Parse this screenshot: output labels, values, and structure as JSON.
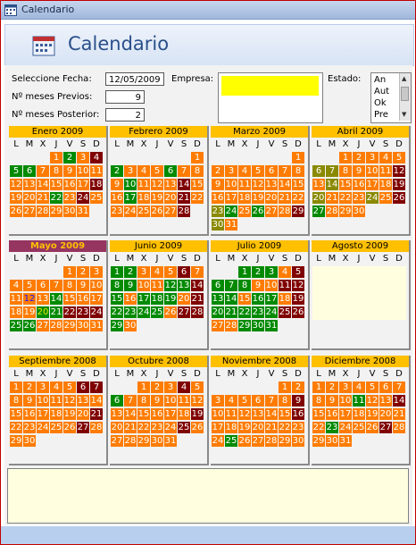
{
  "window": {
    "title": "Calendario"
  },
  "header": {
    "title": "Calendario"
  },
  "form": {
    "fecha_label": "Seleccione Fecha:",
    "fecha_value": "12/05/2009",
    "previos_label": "Nº meses Previos:",
    "previos_value": "9",
    "posterior_label": "Nº meses Posterior:",
    "posterior_value": "2",
    "empresa_label": "Empresa:",
    "estado_label": "Estado:",
    "estado_items": [
      "An",
      "Aut",
      "Ok",
      "Pre"
    ]
  },
  "dow_labels": [
    "L",
    "M",
    "X",
    "J",
    "V",
    "S",
    "D"
  ],
  "colors": {
    "orange": "#ff7c00",
    "green": "#008a00",
    "darkred": "#800000",
    "olive": "#8a8a00",
    "gold": "#ffc000",
    "current": "#963560"
  },
  "months": [
    {
      "title": "Enero 2009",
      "weeks": [
        [
          "",
          "",
          "",
          "1o",
          "2g",
          "3o",
          "4r"
        ],
        [
          "5g",
          "6g",
          "7o",
          "8o",
          "9o",
          "10o",
          "11o"
        ],
        [
          "12o",
          "13o",
          "14o",
          "15o",
          "16o",
          "17o",
          "18r"
        ],
        [
          "19o",
          "20o",
          "21o",
          "22g",
          "23o",
          "24r",
          "25o"
        ],
        [
          "26o",
          "27o",
          "28o",
          "29o",
          "30o",
          "31o",
          ""
        ]
      ]
    },
    {
      "title": "Febrero 2009",
      "weeks": [
        [
          "",
          "",
          "",
          "",
          "",
          "",
          "1o"
        ],
        [
          "2g",
          "3o",
          "4o",
          "5o",
          "6g",
          "7o",
          "8o"
        ],
        [
          "9o",
          "10g",
          "11o",
          "12o",
          "13o",
          "14r",
          "15o"
        ],
        [
          "16o",
          "17g",
          "18o",
          "19o",
          "20o",
          "21r",
          "22o"
        ],
        [
          "23o",
          "24o",
          "25o",
          "26o",
          "27o",
          "28r",
          ""
        ]
      ]
    },
    {
      "title": "Marzo 2009",
      "weeks": [
        [
          "",
          "",
          "",
          "",
          "",
          "",
          "1o"
        ],
        [
          "2o",
          "3o",
          "4o",
          "5o",
          "6o",
          "7o",
          "8o"
        ],
        [
          "9o",
          "10o",
          "11o",
          "12o",
          "13o",
          "14o",
          "15o"
        ],
        [
          "16o",
          "17o",
          "18o",
          "19o",
          "20o",
          "21o",
          "22o"
        ],
        [
          "23y",
          "24g",
          "25o",
          "26g",
          "27o",
          "28o",
          "29r"
        ],
        [
          "30y",
          "31o",
          "",
          "",
          "",
          "",
          ""
        ]
      ]
    },
    {
      "title": "Abril 2009",
      "weeks": [
        [
          "",
          "",
          "1o",
          "2o",
          "3o",
          "4o",
          "5o"
        ],
        [
          "6y",
          "7y",
          "8o",
          "9o",
          "10o",
          "11o",
          "12r"
        ],
        [
          "13o",
          "14y",
          "15o",
          "16o",
          "17o",
          "18o",
          "19r"
        ],
        [
          "20y",
          "21o",
          "22o",
          "23o",
          "24y",
          "25o",
          "26r"
        ],
        [
          "27g",
          "28o",
          "29o",
          "30o",
          "",
          "",
          ""
        ]
      ]
    },
    {
      "title": "Mayo 2009",
      "current": true,
      "weeks": [
        [
          "",
          "",
          "",
          "",
          "1o",
          "2o",
          "3o"
        ],
        [
          "4o",
          "5o",
          "6o",
          "7o",
          "8o",
          "9o",
          "10o"
        ],
        [
          "11o",
          "12s",
          "13o",
          "14g",
          "15o",
          "16o",
          "17o"
        ],
        [
          "18o",
          "19o",
          "20t",
          "21g",
          "22r",
          "23r",
          "24r"
        ],
        [
          "25g",
          "26g",
          "27o",
          "28o",
          "29o",
          "30o",
          "31o"
        ]
      ]
    },
    {
      "title": "Junio 2009",
      "weeks": [
        [
          "1g",
          "2g",
          "3o",
          "4o",
          "5o",
          "6r",
          "7o"
        ],
        [
          "8g",
          "9g",
          "10o",
          "11o",
          "12g",
          "13g",
          "14r"
        ],
        [
          "15g",
          "16o",
          "17g",
          "18g",
          "19g",
          "20o",
          "21r"
        ],
        [
          "22g",
          "23g",
          "24g",
          "25g",
          "26o",
          "27r",
          "28r"
        ],
        [
          "29g",
          "30o",
          "",
          "",
          "",
          "",
          ""
        ]
      ]
    },
    {
      "title": "Julio 2009",
      "weeks": [
        [
          "",
          "",
          "1g",
          "2g",
          "3g",
          "4o",
          "5r"
        ],
        [
          "6g",
          "7g",
          "8g",
          "9o",
          "10o",
          "11r",
          "12r"
        ],
        [
          "13g",
          "14g",
          "15o",
          "16g",
          "17g",
          "18o",
          "19r"
        ],
        [
          "20g",
          "21g",
          "22g",
          "23g",
          "24g",
          "25r",
          "26r"
        ],
        [
          "27o",
          "28o",
          "29g",
          "30g",
          "31g",
          "",
          ""
        ]
      ]
    },
    {
      "title": "Agosto 2009",
      "cream": true,
      "weeks": []
    },
    {
      "title": "Septiembre 2008",
      "weeks": [
        [
          "1o",
          "2o",
          "3o",
          "4o",
          "5o",
          "6r",
          "7r"
        ],
        [
          "8o",
          "9o",
          "10o",
          "11o",
          "12o",
          "13o",
          "14o"
        ],
        [
          "15o",
          "16o",
          "17o",
          "18o",
          "19o",
          "20o",
          "21r"
        ],
        [
          "22o",
          "23o",
          "24o",
          "25o",
          "26o",
          "27r",
          "28o"
        ],
        [
          "29o",
          "30o",
          "",
          "",
          "",
          "",
          ""
        ]
      ]
    },
    {
      "title": "Octubre 2008",
      "weeks": [
        [
          "",
          "",
          "1o",
          "2o",
          "3o",
          "4r",
          "5o"
        ],
        [
          "6g",
          "7o",
          "8o",
          "9o",
          "10o",
          "11o",
          "12o"
        ],
        [
          "13o",
          "14o",
          "15o",
          "16o",
          "17o",
          "18o",
          "19r"
        ],
        [
          "20o",
          "21o",
          "22o",
          "23o",
          "24o",
          "25r",
          "26o"
        ],
        [
          "27o",
          "28o",
          "29o",
          "30o",
          "31o",
          "",
          ""
        ]
      ]
    },
    {
      "title": "Noviembre 2008",
      "weeks": [
        [
          "",
          "",
          "",
          "",
          "",
          "1o",
          "2o"
        ],
        [
          "3o",
          "4o",
          "5o",
          "6o",
          "7o",
          "8o",
          "9r"
        ],
        [
          "10o",
          "11o",
          "12o",
          "13o",
          "14o",
          "15o",
          "16r"
        ],
        [
          "17o",
          "18o",
          "19o",
          "20o",
          "21o",
          "22o",
          "23o"
        ],
        [
          "24o",
          "25g",
          "26o",
          "27o",
          "28o",
          "29o",
          "30o"
        ]
      ]
    },
    {
      "title": "Diciembre 2008",
      "weeks": [
        [
          "1o",
          "2o",
          "3o",
          "4o",
          "5o",
          "6o",
          "7o"
        ],
        [
          "8o",
          "9o",
          "10o",
          "11g",
          "12o",
          "13o",
          "14r"
        ],
        [
          "15o",
          "16o",
          "17o",
          "18o",
          "19o",
          "20o",
          "21o"
        ],
        [
          "22o",
          "23g",
          "24o",
          "25o",
          "26o",
          "27r",
          "28o"
        ],
        [
          "29o",
          "30o",
          "31o",
          "",
          "",
          "",
          ""
        ]
      ]
    }
  ]
}
